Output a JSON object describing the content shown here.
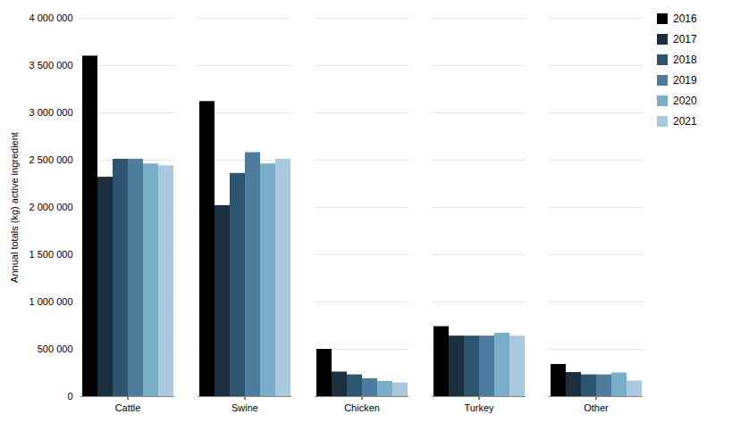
{
  "chart_data": {
    "type": "bar",
    "categories": [
      "Cattle",
      "Swine",
      "Chicken",
      "Turkey",
      "Other"
    ],
    "series": [
      {
        "name": "2016",
        "color": "#000000",
        "values": [
          3600000,
          3120000,
          500000,
          740000,
          340000
        ]
      },
      {
        "name": "2017",
        "color": "#1b2f3e",
        "values": [
          2320000,
          2020000,
          260000,
          640000,
          255000
        ]
      },
      {
        "name": "2018",
        "color": "#2d5570",
        "values": [
          2510000,
          2360000,
          230000,
          640000,
          230000
        ]
      },
      {
        "name": "2019",
        "color": "#4d7c9e",
        "values": [
          2510000,
          2580000,
          190000,
          640000,
          230000
        ]
      },
      {
        "name": "2020",
        "color": "#7aadc8",
        "values": [
          2460000,
          2460000,
          160000,
          670000,
          250000
        ]
      },
      {
        "name": "2021",
        "color": "#aac8de",
        "values": [
          2440000,
          2510000,
          145000,
          640000,
          165000
        ]
      }
    ],
    "ylabel": "Annual totals (kg) active ingredient",
    "ylim": [
      0,
      4000000
    ],
    "yticks": [
      0,
      {
        "value": 500000,
        "label": "500 000"
      },
      {
        "value": 1000000,
        "label": "1 000 000"
      },
      {
        "value": 1500000,
        "label": "1 500 000"
      },
      {
        "value": 2000000,
        "label": "2 000 000"
      },
      {
        "value": 2500000,
        "label": "2 500 000"
      },
      {
        "value": 3000000,
        "label": "3 000 000"
      },
      {
        "value": 3500000,
        "label": "3 500 000"
      },
      {
        "value": 4000000,
        "label": "4 000 000"
      }
    ],
    "grid": true,
    "legend": "right"
  }
}
